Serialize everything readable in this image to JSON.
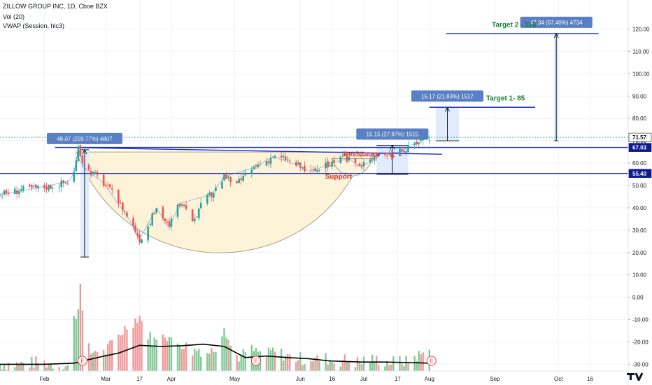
{
  "header": {
    "symbol_line": "ZILLOW GROUP INC, 1D, Cboe BZX",
    "vol_line": "Vol (20)",
    "vwap_line": "VWAP (Session, hlc3)"
  },
  "chart_data": {
    "type": "candlestick",
    "title": "ZILLOW GROUP INC, 1D, Cboe BZX",
    "y_axis": {
      "ticks": [
        "120.00",
        "110.00",
        "100.00",
        "90.00",
        "80.00",
        "70.00",
        "60.00",
        "50.00",
        "40.00",
        "30.00",
        "20.00",
        "10.00",
        "0.00",
        "-10.00",
        "-20.00",
        "-30.00"
      ],
      "tick_values": [
        120,
        110,
        100,
        90,
        80,
        70,
        60,
        50,
        40,
        30,
        20,
        10,
        0,
        -10,
        -20,
        -30
      ],
      "ylim": [
        -33,
        133
      ]
    },
    "x_axis": {
      "ticks": [
        {
          "label": "Feb",
          "day": 0
        },
        {
          "label": "Mar",
          "day": 29
        },
        {
          "label": "17",
          "day": 45
        },
        {
          "label": "Apr",
          "day": 60
        },
        {
          "label": "May",
          "day": 90
        },
        {
          "label": "Jun",
          "day": 121
        },
        {
          "label": "16",
          "day": 136
        },
        {
          "label": "Jul",
          "day": 151
        },
        {
          "label": "17",
          "day": 167
        },
        {
          "label": "Aug",
          "day": 182
        },
        {
          "label": "Sep",
          "day": 213
        },
        {
          "label": "Oct",
          "day": 243
        },
        {
          "label": "16",
          "day": 258
        }
      ],
      "xlim": [
        -21,
        276
      ]
    },
    "price_path": [
      [
        -21,
        46
      ],
      [
        -12,
        48
      ],
      [
        -3,
        49
      ],
      [
        5,
        50
      ],
      [
        12,
        52
      ],
      [
        14,
        56
      ],
      [
        16,
        66
      ],
      [
        17,
        64
      ],
      [
        19,
        58
      ],
      [
        22,
        56
      ],
      [
        25,
        54
      ],
      [
        28,
        51
      ],
      [
        31,
        48
      ],
      [
        34,
        44
      ],
      [
        37,
        40
      ],
      [
        40,
        35
      ],
      [
        43,
        30
      ],
      [
        45,
        26
      ],
      [
        47,
        28
      ],
      [
        50,
        34
      ],
      [
        53,
        40
      ],
      [
        56,
        36
      ],
      [
        59,
        31
      ],
      [
        61,
        38
      ],
      [
        64,
        42
      ],
      [
        67,
        38
      ],
      [
        70,
        35
      ],
      [
        73,
        39
      ],
      [
        76,
        44
      ],
      [
        79,
        46
      ],
      [
        82,
        50
      ],
      [
        85,
        54
      ],
      [
        88,
        52
      ],
      [
        91,
        50
      ],
      [
        93,
        53
      ],
      [
        96,
        55
      ],
      [
        99,
        58
      ],
      [
        102,
        60
      ],
      [
        105,
        61
      ],
      [
        108,
        63
      ],
      [
        111,
        62
      ],
      [
        114,
        62
      ],
      [
        117,
        60
      ],
      [
        120,
        59
      ],
      [
        123,
        57
      ],
      [
        126,
        56
      ],
      [
        129,
        57
      ],
      [
        132,
        58
      ],
      [
        135,
        60
      ],
      [
        138,
        61
      ],
      [
        141,
        62
      ],
      [
        144,
        62
      ],
      [
        147,
        60
      ],
      [
        150,
        58
      ],
      [
        152,
        62
      ],
      [
        155,
        63
      ],
      [
        158,
        64
      ],
      [
        162,
        64
      ],
      [
        165,
        64
      ],
      [
        168,
        65
      ],
      [
        171,
        66
      ],
      [
        174,
        68
      ],
      [
        177,
        70
      ],
      [
        180,
        71
      ],
      [
        182,
        71.57
      ]
    ],
    "volume_path": [
      [
        -21,
        -30
      ],
      [
        -12,
        -30
      ],
      [
        -3,
        -29
      ],
      [
        5,
        -30
      ],
      [
        12,
        -31
      ],
      [
        14,
        -10
      ],
      [
        16,
        -5
      ],
      [
        17,
        6
      ],
      [
        19,
        -20
      ],
      [
        22,
        -25
      ],
      [
        25,
        -23
      ],
      [
        28,
        -25
      ],
      [
        31,
        -22
      ],
      [
        34,
        -18
      ],
      [
        37,
        -15
      ],
      [
        40,
        -12
      ],
      [
        43,
        -10
      ],
      [
        45,
        -8
      ],
      [
        47,
        -14
      ],
      [
        50,
        -18
      ],
      [
        53,
        -20
      ],
      [
        56,
        -15
      ],
      [
        59,
        -18
      ],
      [
        61,
        -22
      ],
      [
        64,
        -20
      ],
      [
        67,
        -22
      ],
      [
        70,
        -24
      ],
      [
        73,
        -23
      ],
      [
        76,
        -25
      ],
      [
        79,
        -24
      ],
      [
        82,
        -21
      ],
      [
        85,
        -12
      ],
      [
        88,
        -22
      ],
      [
        91,
        -26
      ],
      [
        93,
        -27
      ],
      [
        96,
        -23
      ],
      [
        99,
        -24
      ],
      [
        102,
        -25
      ],
      [
        105,
        -26
      ],
      [
        108,
        -24
      ],
      [
        111,
        -25
      ],
      [
        114,
        -26
      ],
      [
        117,
        -27
      ],
      [
        120,
        -27
      ],
      [
        123,
        -28
      ],
      [
        126,
        -27
      ],
      [
        129,
        -28
      ],
      [
        132,
        -27
      ],
      [
        135,
        -28
      ],
      [
        138,
        -29
      ],
      [
        141,
        -28
      ],
      [
        144,
        -28
      ],
      [
        147,
        -29
      ],
      [
        150,
        -29
      ],
      [
        152,
        -27
      ],
      [
        155,
        -28
      ],
      [
        158,
        -28
      ],
      [
        162,
        -29
      ],
      [
        165,
        -29
      ],
      [
        168,
        -28
      ],
      [
        171,
        -29
      ],
      [
        174,
        -27
      ],
      [
        177,
        -26
      ],
      [
        180,
        -25
      ],
      [
        182,
        -21
      ]
    ],
    "vol_ma": [
      [
        -21,
        -30
      ],
      [
        0,
        -30
      ],
      [
        14,
        -29.5
      ],
      [
        25,
        -27
      ],
      [
        35,
        -25
      ],
      [
        45,
        -21.5
      ],
      [
        55,
        -22
      ],
      [
        65,
        -21.7
      ],
      [
        75,
        -21
      ],
      [
        85,
        -22
      ],
      [
        95,
        -27
      ],
      [
        105,
        -26.3
      ],
      [
        115,
        -27
      ],
      [
        125,
        -27.5
      ],
      [
        135,
        -28.5
      ],
      [
        150,
        -29
      ],
      [
        160,
        -29
      ],
      [
        172,
        -29.2
      ],
      [
        182,
        -29.5
      ]
    ],
    "vwap": [
      [
        -21,
        46
      ],
      [
        -3,
        49
      ],
      [
        12,
        52
      ],
      [
        14,
        56
      ],
      [
        16,
        66
      ],
      [
        19,
        58
      ],
      [
        28,
        51
      ],
      [
        40,
        35
      ],
      [
        45,
        26
      ],
      [
        53,
        40
      ],
      [
        59,
        31
      ],
      [
        64,
        42
      ],
      [
        79,
        46
      ],
      [
        85,
        54
      ],
      [
        99,
        58
      ],
      [
        108,
        63
      ],
      [
        117,
        60
      ],
      [
        126,
        56
      ],
      [
        135,
        60
      ],
      [
        144,
        62
      ],
      [
        150,
        58
      ],
      [
        158,
        64
      ],
      [
        168,
        65
      ],
      [
        177,
        70
      ],
      [
        182,
        71.57
      ]
    ],
    "price_labels": [
      {
        "value": 71.57,
        "text": "71.57",
        "bg": "#ffffff",
        "fg": "#131722"
      },
      {
        "value": 67.03,
        "text": "67.03",
        "bg": "#0d1b8e",
        "fg": "#ffffff"
      },
      {
        "value": 55.4,
        "text": "55.40",
        "bg": "#0d1b8e",
        "fg": "#ffffff"
      }
    ],
    "horizontal_lines": [
      {
        "name": "support-line",
        "value": 55.4,
        "x1": -21,
        "x2": 276,
        "color": "#1a2fc7"
      },
      {
        "name": "resistance-line",
        "value": 67.03,
        "x1": 5,
        "x2": 276,
        "color": "#1a2fc7"
      },
      {
        "name": "target1-line",
        "value": 85,
        "x1": 182,
        "x2": 232,
        "color": "#1a2fc7"
      },
      {
        "name": "target2-line",
        "value": 118,
        "x1": 190,
        "x2": 262,
        "color": "#1a2fc7"
      },
      {
        "name": "current-price-line",
        "value": 71.57,
        "x1": -21,
        "x2": 276,
        "color": "#26a69a",
        "dashed": true
      }
    ],
    "resistance_trend": [
      [
        12,
        67.0
      ],
      [
        188,
        64.0
      ]
    ],
    "cup": {
      "left_day": 15,
      "right_day": 151,
      "rim": 65,
      "bottom": 18
    },
    "handle": {
      "left_day": 136,
      "right_day": 155,
      "rim": 62,
      "bottom": 54
    },
    "measure_boxes": [
      {
        "name": "measure-1",
        "x1": 17,
        "x2": 21,
        "y1": 66,
        "y2": 18,
        "label": "48.07 (259.77%) 4807"
      },
      {
        "name": "measure-2",
        "x1": 157,
        "x2": 172,
        "y1": 68,
        "y2": 55,
        "label": "15.15 (27.87%) 1515"
      },
      {
        "name": "measure-3",
        "x1": 185,
        "x2": 196,
        "y1": 85,
        "y2": 70,
        "label": "15.17 (21.83%) 1517"
      },
      {
        "name": "measure-4",
        "x1": 241,
        "x2": 243,
        "y1": 118,
        "y2": 70,
        "label": "47.34 (67.40%) 4734"
      }
    ],
    "annotations": [
      {
        "name": "target2-label",
        "text": "Target 2 - 118",
        "day": 222,
        "value": 121,
        "color": "#1e7e34"
      },
      {
        "name": "target1-label",
        "text": "Target 1- 85",
        "day": 218,
        "value": 88,
        "color": "#1e7e34"
      },
      {
        "name": "resistance-label",
        "text": "Resistance",
        "day": 150,
        "value": 63,
        "color": "#d32f2f"
      },
      {
        "name": "support-label",
        "text": "Support",
        "day": 139,
        "value": 53,
        "color": "#d32f2f"
      }
    ],
    "earnings_markers": [
      {
        "day": 18,
        "value": -30,
        "text": "E"
      },
      {
        "day": 100,
        "value": -30,
        "text": "E"
      },
      {
        "day": 183,
        "value": -30,
        "text": "E"
      }
    ],
    "colors": {
      "up": "#26a69a",
      "down": "#ef5350",
      "vol_up": "#81c995",
      "vol_down": "#ef9a9a",
      "hline": "#1a2fc7",
      "cup_fill": "#fdf3d9",
      "measure": "#5b7fc4"
    }
  }
}
